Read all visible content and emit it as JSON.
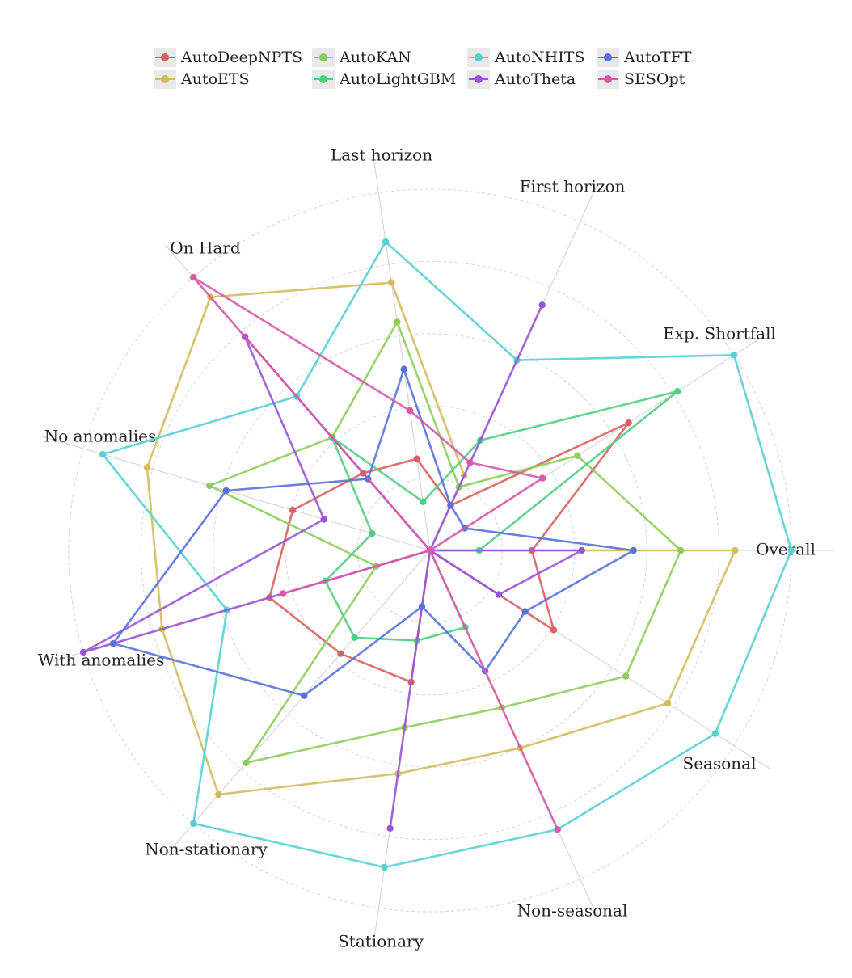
{
  "chart_data": {
    "type": "radar",
    "title": "",
    "axes": [
      "Overall",
      "Exp. Shortfall",
      "First horizon",
      "Last horizon",
      "On Hard",
      "No anomalies",
      "With anomalies",
      "Non-stationary",
      "Stationary",
      "Non-seasonal",
      "Seasonal"
    ],
    "rmax": 1.0,
    "rings": 5,
    "grid": true,
    "legend_position": "top",
    "series": [
      {
        "name": "AutoDeepNPTS",
        "color": "#d9625f",
        "values": [
          0.282,
          0.653,
          0.137,
          0.256,
          0.283,
          0.396,
          0.463,
          0.378,
          0.368,
          0.0,
          0.407
        ]
      },
      {
        "name": "AutoETS",
        "color": "#d4bb5e",
        "values": [
          0.844,
          0.0,
          0.228,
          0.749,
          0.928,
          0.816,
          0.773,
          0.894,
          0.624,
          0.601,
          0.782
        ]
      },
      {
        "name": "AutoKAN",
        "color": "#8dce5b",
        "values": [
          0.694,
          0.485,
          0.193,
          0.639,
          0.414,
          0.636,
          0.155,
          0.778,
          0.495,
          0.478,
          0.644
        ]
      },
      {
        "name": "AutoLightGBM",
        "color": "#52ce82",
        "values": [
          0.136,
          0.814,
          0.335,
          0.136,
          0.414,
          0.167,
          0.302,
          0.319,
          0.252,
          0.234,
          0.0
        ]
      },
      {
        "name": "AutoNHITS",
        "color": "#56d0d5",
        "values": [
          1.0,
          1.0,
          0.579,
          0.863,
          0.564,
          0.944,
          0.586,
          1.0,
          0.886,
          0.849,
          0.938
        ]
      },
      {
        "name": "AutoTheta",
        "color": "#9b54d9",
        "values": [
          0.42,
          0.0,
          0.747,
          0.0,
          0.782,
          0.306,
          1.0,
          0.0,
          0.777,
          0.0,
          0.226
        ]
      },
      {
        "name": "AutoTFT",
        "color": "#5873d8",
        "values": [
          0.563,
          0.114,
          0.137,
          0.507,
          0.262,
          0.588,
          0.914,
          0.532,
          0.157,
          0.367,
          0.313
        ]
      },
      {
        "name": "SESOpt",
        "color": "#d65aa8",
        "values": [
          0.0,
          0.37,
          0.267,
          0.391,
          1.0,
          0.0,
          0.424,
          0.0,
          0.0,
          0.849,
          0.0
        ]
      }
    ]
  }
}
